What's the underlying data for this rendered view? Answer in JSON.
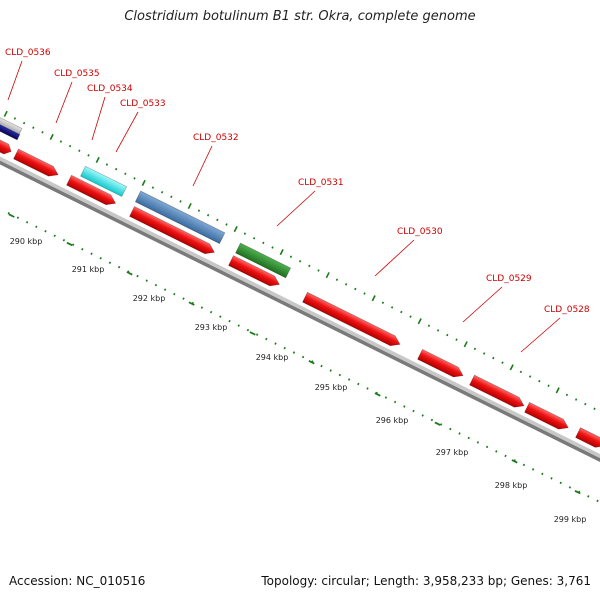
{
  "title": "Clostridium botulinum B1 str. Okra, complete genome",
  "footer": {
    "accession": "Accession: NC_010516",
    "topology": "Topology: circular; Length: 3,958,233 bp; Genes: 3,761"
  },
  "colors": {
    "backbone": "#8c8c8c",
    "gene_red": "#ee1111",
    "tick": "#1a7a1a",
    "label": "#cc0000",
    "cyan": "#22e6ea",
    "steel_blue": "#4a7fb5",
    "green": "#2e8b2e",
    "navy": "#0c0c7a",
    "gray": "#b4b4b4"
  },
  "scale_labels": [
    "290 kbp",
    "291 kbp",
    "292 kbp",
    "293 kbp",
    "294 kbp",
    "295 kbp",
    "296 kbp",
    "297 kbp",
    "298 kbp",
    "299 kbp"
  ],
  "gene_labels": [
    "CLD_0536",
    "CLD_0535",
    "CLD_0534",
    "CLD_0533",
    "CLD_0532",
    "CLD_0531",
    "CLD_0530",
    "CLD_0529",
    "CLD_0528"
  ]
}
